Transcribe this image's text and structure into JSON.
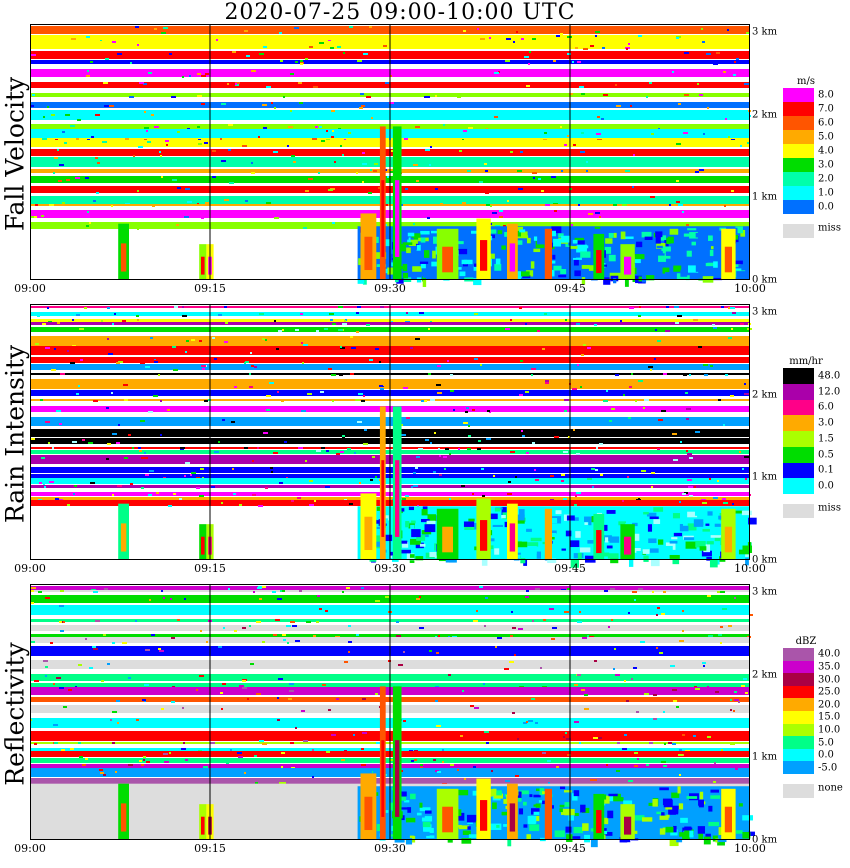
{
  "title": "2020-07-25   09:00-10:00 UTC",
  "colors": {
    "fall_velocity_scale": [
      "#0000ff",
      "#0070ff",
      "#00ffff",
      "#00ffaa",
      "#00dd00",
      "#88ff00",
      "#ffff00",
      "#ffaa00",
      "#ff5500",
      "#ff0000",
      "#ff00ff"
    ],
    "rain_intensity_scale": [
      "#aaffff",
      "#00ffff",
      "#00a0ff",
      "#0000ff",
      "#00ff88",
      "#00dd00",
      "#aaff00",
      "#ffff00",
      "#ffaa00",
      "#ff0000",
      "#ff0088",
      "#ff00ff",
      "#aa00aa",
      "#000000"
    ],
    "reflectivity_scale": [
      "#0000ff",
      "#00a0ff",
      "#00ffff",
      "#00ff88",
      "#00dd00",
      "#aaff00",
      "#ffff00",
      "#ffaa00",
      "#ff5500",
      "#ff0000",
      "#aa0044",
      "#cc00cc",
      "#aa55aa"
    ],
    "missing": "#dddddd",
    "background": "#ffffff"
  },
  "chart_data": [
    {
      "type": "heatmap",
      "title": "Fall Velocity",
      "x": [
        "09:00",
        "09:15",
        "09:30",
        "09:45",
        "10:00"
      ],
      "y_ticks": [
        "0 km",
        "1 km",
        "2 km",
        "3 km"
      ],
      "ylim_km": [
        0,
        3.1
      ],
      "xlim": [
        "09:00",
        "10:00"
      ],
      "colorbar": {
        "unit": "m/s",
        "labels": [
          "8.0",
          "7.0",
          "6.0",
          "5.0",
          "4.0",
          "3.0",
          "2.0",
          "1.0",
          "0.0"
        ],
        "missing_label": "miss"
      }
    },
    {
      "type": "heatmap",
      "title": "Rain Intensity",
      "x": [
        "09:00",
        "09:15",
        "09:30",
        "09:45",
        "10:00"
      ],
      "y_ticks": [
        "0 km",
        "1 km",
        "2 km",
        "3 km"
      ],
      "ylim_km": [
        0,
        3.1
      ],
      "xlim": [
        "09:00",
        "10:00"
      ],
      "colorbar": {
        "unit": "mm/hr",
        "labels": [
          "48.0",
          "12.0",
          "6.0",
          "3.0",
          "1.5",
          "0.5",
          "0.1",
          "0.0"
        ],
        "missing_label": "miss"
      }
    },
    {
      "type": "heatmap",
      "title": "Reflectivity",
      "x": [
        "09:00",
        "09:15",
        "09:30",
        "09:45",
        "10:00"
      ],
      "y_ticks": [
        "0 km",
        "1 km",
        "2 km",
        "3 km"
      ],
      "ylim_km": [
        0,
        3.1
      ],
      "xlim": [
        "09:00",
        "10:00"
      ],
      "colorbar": {
        "unit": "dBZ",
        "labels": [
          "40.0",
          "35.0",
          "30.0",
          "25.0",
          "20.0",
          "15.0",
          "10.0",
          "5.0",
          "0.0",
          "-5.0"
        ],
        "missing_label": "none"
      }
    }
  ]
}
